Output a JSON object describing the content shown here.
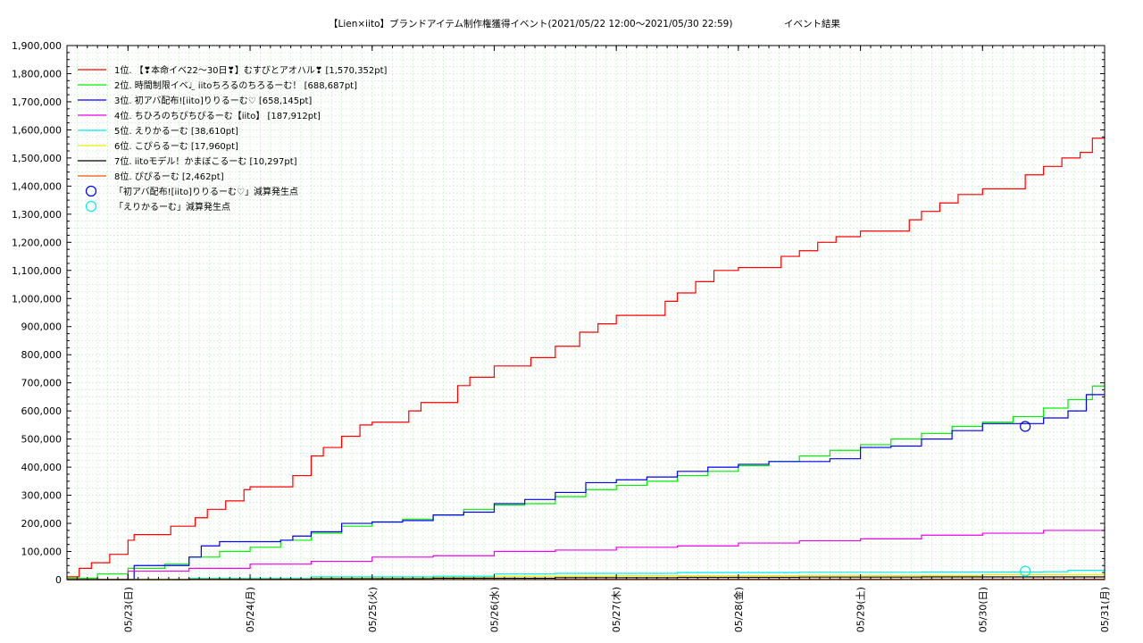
{
  "chart_data": {
    "type": "line",
    "title": "【Lien×iito】ブランドアイテム制作権獲得イベント(2021/05/22 12:00〜2021/05/30 22:59)",
    "subtitle": "イベント結果",
    "ylim": [
      0,
      1900000
    ],
    "yticks": [
      "0",
      "100,000",
      "200,000",
      "300,000",
      "400,000",
      "500,000",
      "600,000",
      "700,000",
      "800,000",
      "900,000",
      "1,000,000",
      "1,100,000",
      "1,200,000",
      "1,300,000",
      "1,400,000",
      "1,500,000",
      "1,600,000",
      "1,700,000",
      "1,800,000",
      "1,900,000"
    ],
    "xlim": [
      0,
      8.5
    ],
    "x_tick_positions": [
      0.5,
      1.5,
      2.5,
      3.5,
      4.5,
      5.5,
      6.5,
      7.5,
      8.5
    ],
    "xticks": [
      "05/23(日)",
      "05/24(月)",
      "05/25(火)",
      "05/26(水)",
      "05/27(木)",
      "05/28(金)",
      "05/29(土)",
      "05/30(日)",
      "05/31(月)"
    ],
    "grid": true,
    "legend_position": "top-left",
    "series": [
      {
        "name": "1位. 【❣本命イベ22〜30日❣】むすびとアオハル❣ [1,570,352pt]",
        "color": "#ff0000",
        "points": [
          [
            0,
            10000
          ],
          [
            0.1,
            40000
          ],
          [
            0.2,
            60000
          ],
          [
            0.35,
            90000
          ],
          [
            0.5,
            140000
          ],
          [
            0.55,
            160000
          ],
          [
            0.8,
            160000
          ],
          [
            0.85,
            190000
          ],
          [
            1.0,
            190000
          ],
          [
            1.05,
            220000
          ],
          [
            1.15,
            250000
          ],
          [
            1.3,
            280000
          ],
          [
            1.45,
            320000
          ],
          [
            1.5,
            330000
          ],
          [
            1.75,
            330000
          ],
          [
            1.85,
            370000
          ],
          [
            2.0,
            440000
          ],
          [
            2.1,
            470000
          ],
          [
            2.25,
            510000
          ],
          [
            2.4,
            550000
          ],
          [
            2.5,
            560000
          ],
          [
            2.7,
            560000
          ],
          [
            2.8,
            600000
          ],
          [
            2.9,
            630000
          ],
          [
            3.1,
            630000
          ],
          [
            3.2,
            690000
          ],
          [
            3.3,
            720000
          ],
          [
            3.5,
            760000
          ],
          [
            3.7,
            760000
          ],
          [
            3.8,
            790000
          ],
          [
            4.0,
            830000
          ],
          [
            4.2,
            880000
          ],
          [
            4.35,
            910000
          ],
          [
            4.5,
            940000
          ],
          [
            4.8,
            940000
          ],
          [
            4.9,
            990000
          ],
          [
            5.0,
            1020000
          ],
          [
            5.15,
            1060000
          ],
          [
            5.3,
            1100000
          ],
          [
            5.5,
            1110000
          ],
          [
            5.75,
            1110000
          ],
          [
            5.85,
            1150000
          ],
          [
            6.0,
            1170000
          ],
          [
            6.15,
            1200000
          ],
          [
            6.3,
            1220000
          ],
          [
            6.5,
            1240000
          ],
          [
            6.8,
            1240000
          ],
          [
            6.9,
            1280000
          ],
          [
            7.0,
            1310000
          ],
          [
            7.15,
            1340000
          ],
          [
            7.3,
            1370000
          ],
          [
            7.5,
            1390000
          ],
          [
            7.75,
            1390000
          ],
          [
            7.85,
            1440000
          ],
          [
            8.0,
            1470000
          ],
          [
            8.15,
            1500000
          ],
          [
            8.3,
            1520000
          ],
          [
            8.4,
            1570352
          ],
          [
            8.5,
            1570352
          ]
        ]
      },
      {
        "name": "2位. 時間制限イベ♩ ̤ iitoちろるのちろるーむ！ [688,687pt]",
        "color": "#00ee00",
        "points": [
          [
            0,
            5000
          ],
          [
            0.25,
            20000
          ],
          [
            0.5,
            40000
          ],
          [
            0.8,
            55000
          ],
          [
            1.0,
            80000
          ],
          [
            1.25,
            100000
          ],
          [
            1.5,
            115000
          ],
          [
            1.75,
            140000
          ],
          [
            2.0,
            165000
          ],
          [
            2.25,
            190000
          ],
          [
            2.5,
            205000
          ],
          [
            2.75,
            215000
          ],
          [
            3.0,
            230000
          ],
          [
            3.25,
            250000
          ],
          [
            3.5,
            265000
          ],
          [
            3.75,
            270000
          ],
          [
            4.0,
            295000
          ],
          [
            4.25,
            320000
          ],
          [
            4.5,
            335000
          ],
          [
            4.75,
            350000
          ],
          [
            5.0,
            370000
          ],
          [
            5.25,
            385000
          ],
          [
            5.5,
            405000
          ],
          [
            5.75,
            420000
          ],
          [
            6.0,
            440000
          ],
          [
            6.25,
            460000
          ],
          [
            6.5,
            480000
          ],
          [
            6.75,
            500000
          ],
          [
            7.0,
            520000
          ],
          [
            7.25,
            545000
          ],
          [
            7.5,
            560000
          ],
          [
            7.75,
            580000
          ],
          [
            8.0,
            610000
          ],
          [
            8.2,
            640000
          ],
          [
            8.4,
            688687
          ],
          [
            8.5,
            688687
          ]
        ]
      },
      {
        "name": "3位. 初アバ配布![iito]りりるーむ♡ [658,145pt]",
        "color": "#0000ee",
        "points": [
          [
            0,
            0
          ],
          [
            0.45,
            0
          ],
          [
            0.55,
            50000
          ],
          [
            0.8,
            50000
          ],
          [
            1.0,
            80000
          ],
          [
            1.1,
            120000
          ],
          [
            1.25,
            135000
          ],
          [
            1.5,
            135000
          ],
          [
            1.75,
            140000
          ],
          [
            1.85,
            155000
          ],
          [
            2.0,
            170000
          ],
          [
            2.25,
            200000
          ],
          [
            2.5,
            205000
          ],
          [
            2.75,
            210000
          ],
          [
            3.0,
            230000
          ],
          [
            3.25,
            240000
          ],
          [
            3.5,
            270000
          ],
          [
            3.75,
            285000
          ],
          [
            4.0,
            310000
          ],
          [
            4.25,
            345000
          ],
          [
            4.5,
            355000
          ],
          [
            4.75,
            365000
          ],
          [
            5.0,
            385000
          ],
          [
            5.25,
            400000
          ],
          [
            5.5,
            410000
          ],
          [
            5.75,
            420000
          ],
          [
            6.0,
            420000
          ],
          [
            6.25,
            430000
          ],
          [
            6.5,
            470000
          ],
          [
            6.75,
            475000
          ],
          [
            7.0,
            500000
          ],
          [
            7.25,
            530000
          ],
          [
            7.5,
            555000
          ],
          [
            7.85,
            555000
          ],
          [
            8.0,
            575000
          ],
          [
            8.2,
            600000
          ],
          [
            8.35,
            658145
          ],
          [
            8.5,
            658145
          ]
        ]
      },
      {
        "name": "4位. ちひろのちぴちぴるーむ【iito】 [187,912pt]",
        "color": "#ee00ee",
        "points": [
          [
            0,
            0
          ],
          [
            0.5,
            30000
          ],
          [
            1.0,
            40000
          ],
          [
            1.5,
            55000
          ],
          [
            2.0,
            65000
          ],
          [
            2.5,
            80000
          ],
          [
            3.0,
            85000
          ],
          [
            3.5,
            100000
          ],
          [
            4.0,
            105000
          ],
          [
            4.5,
            115000
          ],
          [
            5.0,
            120000
          ],
          [
            5.5,
            130000
          ],
          [
            6.0,
            138000
          ],
          [
            6.5,
            145000
          ],
          [
            7.0,
            158000
          ],
          [
            7.5,
            165000
          ],
          [
            8.0,
            175000
          ],
          [
            8.5,
            187912
          ]
        ]
      },
      {
        "name": "5位. えりかるーむ [38,610pt]",
        "color": "#00eeee",
        "points": [
          [
            0,
            0
          ],
          [
            1.0,
            5000
          ],
          [
            2.0,
            10000
          ],
          [
            3.0,
            12000
          ],
          [
            3.5,
            20000
          ],
          [
            4.0,
            22000
          ],
          [
            5.0,
            25000
          ],
          [
            6.0,
            26000
          ],
          [
            7.0,
            27000
          ],
          [
            8.0,
            28000
          ],
          [
            8.2,
            33000
          ],
          [
            8.5,
            38610
          ]
        ]
      },
      {
        "name": "6位. こぴらるーむ [17,960pt]",
        "color": "#eeee00",
        "points": [
          [
            0,
            0
          ],
          [
            1.0,
            2000
          ],
          [
            2.0,
            5000
          ],
          [
            3.0,
            8000
          ],
          [
            3.5,
            12000
          ],
          [
            4.5,
            14000
          ],
          [
            6.0,
            15000
          ],
          [
            7.5,
            17000
          ],
          [
            8.5,
            17960
          ]
        ]
      },
      {
        "name": "7位. iitoモデル！かまぼこるーむ [10,297pt]",
        "color": "#000000",
        "points": [
          [
            0,
            0
          ],
          [
            1.0,
            1000
          ],
          [
            2.0,
            3000
          ],
          [
            3.0,
            5000
          ],
          [
            4.0,
            7000
          ],
          [
            5.0,
            8000
          ],
          [
            6.0,
            9000
          ],
          [
            7.0,
            9500
          ],
          [
            8.5,
            10297
          ]
        ]
      },
      {
        "name": "8位. ぴぴるーむ [2,462pt]",
        "color": "#ee5500",
        "points": [
          [
            0,
            0
          ],
          [
            2.0,
            500
          ],
          [
            4.0,
            1200
          ],
          [
            6.0,
            1800
          ],
          [
            8.5,
            2462
          ]
        ]
      }
    ],
    "markers": [
      {
        "name": "「初アバ配布![iito]りりるーむ♡」減算発生点",
        "color": "#0000ee",
        "x": 7.85,
        "y": 545000
      },
      {
        "name": "「えりかるーむ」減算発生点",
        "color": "#00eeee",
        "x": 7.85,
        "y": 30000
      }
    ]
  }
}
